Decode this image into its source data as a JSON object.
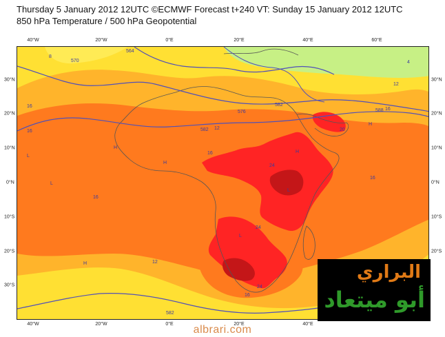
{
  "title_line1": "Thursday 5 January 2012 12UTC ©ECMWF Forecast t+240 VT: Sunday 15 January 2012 12UTC",
  "title_line2": "850 hPa Temperature / 500 hPa Geopotential",
  "longitude_labels": [
    "40°W",
    "20°W",
    "0°E",
    "20°E",
    "40°E",
    "60°E"
  ],
  "latitude_labels": [
    "30°N",
    "20°N",
    "10°N",
    "0°N",
    "10°S",
    "20°S",
    "30°S"
  ],
  "temperature_labels": [
    "4",
    "8",
    "12",
    "16",
    "20",
    "24"
  ],
  "geopotential_labels": [
    "564",
    "570",
    "576",
    "582",
    "588"
  ],
  "pressure_markers": [
    "H",
    "L"
  ],
  "watermark": {
    "line1": "البراري",
    "line2": "أبو ميتعاد",
    "site": "albrari.com"
  },
  "colors": {
    "light_green": "#c7f085",
    "yellow": "#ffe033",
    "orange": "#ffb42b",
    "dark_orange": "#ff7a1e",
    "red": "#ff2424",
    "dark_red": "#c41618",
    "contour": "#5050b8",
    "coast": "#555555",
    "logo_orange": "#e07a16",
    "logo_green": "#2f9a2a"
  }
}
